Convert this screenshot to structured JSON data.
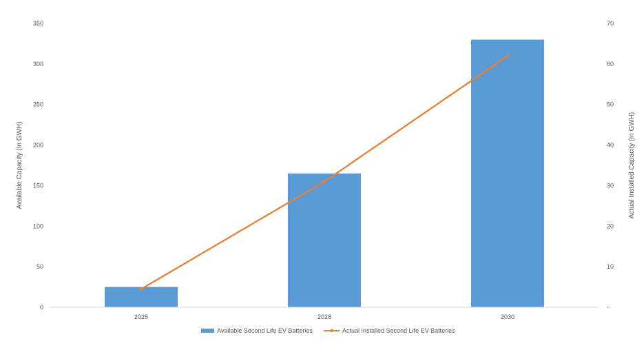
{
  "chart_data": {
    "type": "bar",
    "categories": [
      "2025",
      "2028",
      "2030"
    ],
    "series": [
      {
        "name": "Available Second Life EV Batteries",
        "type": "bar",
        "axis": "left",
        "values": [
          25,
          165,
          330
        ],
        "color": "#5b9bd5"
      },
      {
        "name": "Actual Installed Second Life EV Batteries",
        "type": "line",
        "axis": "right",
        "values": [
          4.5,
          31,
          62
        ],
        "color": "#ed7d31"
      }
    ],
    "ylabel": "Available Capacity (In GWH)",
    "y2label": "Actual Installed Capacity (In GWH)",
    "ylim": [
      0,
      350
    ],
    "y2lim": [
      0,
      70
    ],
    "yticks": [
      "0",
      "50",
      "100",
      "150",
      "200",
      "250",
      "300",
      "350"
    ],
    "y2ticks": [
      "-",
      "10",
      "20",
      "30",
      "40",
      "50",
      "60",
      "70"
    ],
    "grid": false,
    "legend_position": "bottom"
  }
}
